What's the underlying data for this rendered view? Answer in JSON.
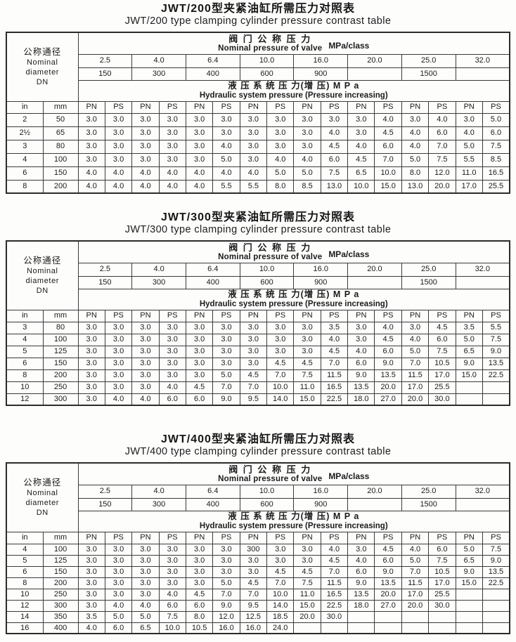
{
  "tables": [
    {
      "id": "jwt200",
      "title_zh": "JWT/200型夹紧油缸所需压力对照表",
      "title_en": "JWT/200 type clamping cylinder pressure contrast table",
      "header": {
        "left_zh": "公称通径",
        "left_en1": "Nominal",
        "left_en2": "diameter",
        "left_en3": "DN",
        "valve_zh": "阀 门 公 称 压 力",
        "valve_en": "Nominal pressure of valve",
        "valve_unit": "MPa/class",
        "mpa_values": [
          "2.5",
          "4.0",
          "6.4",
          "10.0",
          "16.0",
          "20.0",
          "25.0",
          "32.0"
        ],
        "class_values": [
          "150",
          "300",
          "400",
          "600",
          "900",
          "",
          "1500",
          ""
        ],
        "hydraulic_zh": "液 压 系 统 压 力(增 压) M P a",
        "hydraulic_en": "Hydraulic system pressure (Pressure increasing)",
        "columns": [
          "in",
          "mm",
          "PN",
          "PS",
          "PN",
          "PS",
          "PN",
          "PS",
          "PN",
          "PS",
          "PN",
          "PS",
          "PN",
          "PS",
          "PN",
          "PS",
          "PN",
          "PS"
        ]
      },
      "rows": [
        [
          "2",
          "50",
          "3.0",
          "3.0",
          "3.0",
          "3.0",
          "3.0",
          "3.0",
          "3.0",
          "3.0",
          "3.0",
          "3.0",
          "3.0",
          "4.0",
          "3.0",
          "4.0",
          "3.0",
          "5.0"
        ],
        [
          "2½",
          "65",
          "3.0",
          "3.0",
          "3.0",
          "3.0",
          "3.0",
          "3.0",
          "3.0",
          "3.0",
          "3.0",
          "4.0",
          "3.0",
          "4.5",
          "4.0",
          "6.0",
          "4.0",
          "6.0"
        ],
        [
          "3",
          "80",
          "3.0",
          "3.0",
          "3.0",
          "3.0",
          "3.0",
          "4.0",
          "3.0",
          "3.0",
          "3.0",
          "4.5",
          "4.0",
          "6.0",
          "4.0",
          "7.0",
          "5.0",
          "7.5"
        ],
        [
          "4",
          "100",
          "3.0",
          "3.0",
          "3.0",
          "3.0",
          "3.0",
          "5.0",
          "3.0",
          "4.0",
          "4.0",
          "6.0",
          "4.5",
          "7.0",
          "5.0",
          "7.5",
          "5.5",
          "8.5"
        ],
        [
          "6",
          "150",
          "4.0",
          "4.0",
          "4.0",
          "4.0",
          "4.0",
          "4.0",
          "4.0",
          "5.0",
          "5.0",
          "7.5",
          "6.5",
          "10.0",
          "8.0",
          "12.0",
          "11.0",
          "16.5"
        ],
        [
          "8",
          "200",
          "4.0",
          "4.0",
          "4.0",
          "4.0",
          "4.0",
          "5.5",
          "5.5",
          "8.0",
          "8.5",
          "13.0",
          "10.0",
          "15.0",
          "13.0",
          "20.0",
          "17.0",
          "25.5"
        ]
      ]
    },
    {
      "id": "jwt300",
      "title_zh": "JWT/300型夹紧油缸所需压力对照表",
      "title_en": "JWT/300 type clamping cylinder pressure contrast table",
      "header": {
        "left_zh": "公称通径",
        "left_en1": "Nominal",
        "left_en2": "diameter",
        "left_en3": "DN",
        "valve_zh": "阀 门 公 称 压 力",
        "valve_en": "Nominal pressure of valve",
        "valve_unit": "MPa/class",
        "mpa_values": [
          "2.5",
          "4.0",
          "6.4",
          "10.0",
          "16.0",
          "20.0",
          "25.0",
          "32.0"
        ],
        "class_values": [
          "150",
          "300",
          "400",
          "600",
          "900",
          "",
          "1500",
          ""
        ],
        "hydraulic_zh": "液 压 系 统 压 力(增 压) M P a",
        "hydraulic_en": "Hydraulic system pressure (Pressure increasing)",
        "columns": [
          "in",
          "mm",
          "PN",
          "PS",
          "PN",
          "PS",
          "PN",
          "PS",
          "PN",
          "PS",
          "PN",
          "PS",
          "PN",
          "PS",
          "PN",
          "PS",
          "PN",
          "PS"
        ]
      },
      "rows": [
        [
          "3",
          "80",
          "3.0",
          "3.0",
          "3.0",
          "3.0",
          "3.0",
          "3.0",
          "3.0",
          "3.0",
          "3.0",
          "3.5",
          "3.0",
          "4.0",
          "3.0",
          "4.5",
          "3.5",
          "5.5"
        ],
        [
          "4",
          "100",
          "3.0",
          "3.0",
          "3.0",
          "3.0",
          "3.0",
          "3.0",
          "3.0",
          "3.0",
          "3.0",
          "4.0",
          "3.0",
          "4.5",
          "4.0",
          "6.0",
          "5.0",
          "7.5"
        ],
        [
          "5",
          "125",
          "3.0",
          "3.0",
          "3.0",
          "3.0",
          "3.0",
          "3.0",
          "3.0",
          "3.0",
          "3.0",
          "4.5",
          "4.0",
          "6.0",
          "5.0",
          "7.5",
          "6.5",
          "9.0"
        ],
        [
          "6",
          "150",
          "3.0",
          "3.0",
          "3.0",
          "3.0",
          "3.0",
          "3.0",
          "3.0",
          "4.5",
          "4.5",
          "7.0",
          "6.0",
          "9.0",
          "7.0",
          "10.5",
          "9.0",
          "13.5"
        ],
        [
          "8",
          "200",
          "3.0",
          "3.0",
          "3.0",
          "3.0",
          "3.0",
          "5.0",
          "4.5",
          "7.0",
          "7.5",
          "11.5",
          "9.0",
          "13.5",
          "11.5",
          "17.0",
          "15.0",
          "22.5"
        ],
        [
          "10",
          "250",
          "3.0",
          "3.0",
          "3.0",
          "4.0",
          "4.5",
          "7.0",
          "7.0",
          "10.0",
          "11.0",
          "16.5",
          "13.5",
          "20.0",
          "17.0",
          "25.5",
          "",
          ""
        ],
        [
          "12",
          "300",
          "3.0",
          "4.0",
          "4.0",
          "6.0",
          "6.0",
          "9.0",
          "9.5",
          "14.0",
          "15.0",
          "22.5",
          "18.0",
          "27.0",
          "20.0",
          "30.0",
          "",
          ""
        ]
      ]
    },
    {
      "id": "jwt400",
      "title_zh": "JWT/400型夹紧油缸所需压力对照表",
      "title_en": "JWT/400 type clamping cylinder pressure contrast table",
      "header": {
        "left_zh": "公称通径",
        "left_en1": "Nominal",
        "left_en2": "diameter",
        "left_en3": "DN",
        "valve_zh": "阀 门 公 称 压 力",
        "valve_en": "Nominal pressure of valve",
        "valve_unit": "MPa/class",
        "mpa_values": [
          "2.5",
          "4.0",
          "6.4",
          "10.0",
          "16.0",
          "20.0",
          "25.0",
          "32.0"
        ],
        "class_values": [
          "150",
          "300",
          "400",
          "600",
          "900",
          "",
          "1500",
          ""
        ],
        "hydraulic_zh": "液 压 系 统 压 力(增 压) M P a",
        "hydraulic_en": "Hydraulic system pressure (Pressure increasing)",
        "columns": [
          "in",
          "mm",
          "PN",
          "PS",
          "PN",
          "PS",
          "PN",
          "PS",
          "PN",
          "PS",
          "PN",
          "PS",
          "PN",
          "PS",
          "PN",
          "PS",
          "PN",
          "PS"
        ]
      },
      "rows": [
        [
          "4",
          "100",
          "3.0",
          "3.0",
          "3.0",
          "3.0",
          "3.0",
          "3.0",
          "300",
          "3.0",
          "3.0",
          "4.0",
          "3.0",
          "4.5",
          "4.0",
          "6.0",
          "5.0",
          "7.5"
        ],
        [
          "5",
          "125",
          "3.0",
          "3.0",
          "3.0",
          "3.0",
          "3.0",
          "3.0",
          "3.0",
          "3.0",
          "3.0",
          "4.5",
          "4.0",
          "6.0",
          "5.0",
          "7.5",
          "6.5",
          "9.0"
        ],
        [
          "6",
          "150",
          "3.0",
          "3.0",
          "3.0",
          "3.0",
          "3.0",
          "3.0",
          "3.0",
          "4.5",
          "4.5",
          "7.0",
          "6.0",
          "9.0",
          "7.0",
          "10.5",
          "9.0",
          "13.5"
        ],
        [
          "8",
          "200",
          "3.0",
          "3.0",
          "3.0",
          "3.0",
          "3.0",
          "5.0",
          "4.5",
          "7.0",
          "7.5",
          "11.5",
          "9.0",
          "13.5",
          "11.5",
          "17.0",
          "15.0",
          "22.5"
        ],
        [
          "10",
          "250",
          "3.0",
          "3.0",
          "3.0",
          "4.0",
          "4.5",
          "7.0",
          "7.0",
          "10.0",
          "11.0",
          "16.5",
          "13.5",
          "20.0",
          "17.0",
          "25.5",
          "",
          ""
        ],
        [
          "12",
          "300",
          "3.0",
          "4.0",
          "4.0",
          "6.0",
          "6.0",
          "9.0",
          "9.5",
          "14.0",
          "15.0",
          "22.5",
          "18.0",
          "27.0",
          "20.0",
          "30.0",
          "",
          ""
        ],
        [
          "14",
          "350",
          "3.5",
          "5.0",
          "5.0",
          "7.5",
          "8.0",
          "12.0",
          "12.5",
          "18.5",
          "20.0",
          "30.0",
          "",
          "",
          "",
          "",
          "",
          ""
        ],
        [
          "16",
          "400",
          "4.0",
          "6.0",
          "6.5",
          "10.0",
          "10.5",
          "16.0",
          "16.0",
          "24.0",
          "",
          "",
          "",
          "",
          "",
          "",
          "",
          ""
        ]
      ]
    }
  ]
}
